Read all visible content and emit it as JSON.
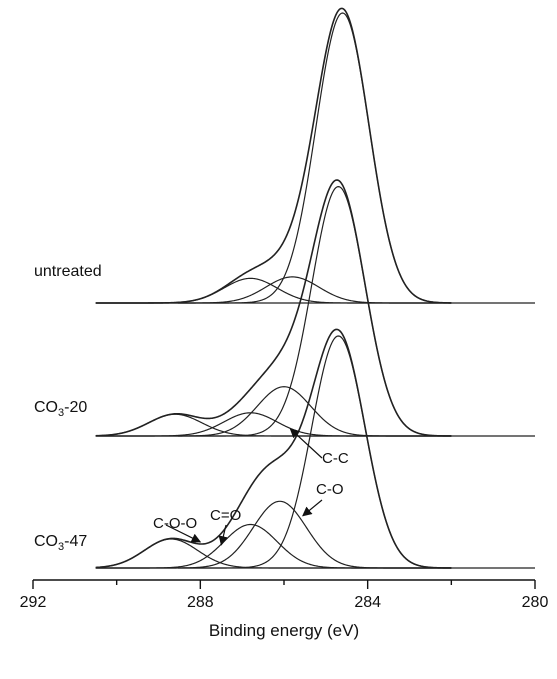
{
  "chart_data": {
    "type": "line",
    "title": "",
    "xlabel": "Binding energy (eV)",
    "ylabel": "",
    "xlim": [
      292,
      280
    ],
    "x_reversed": true,
    "xticks": [
      292,
      290,
      288,
      286,
      284,
      282,
      280
    ],
    "xtick_labels": [
      "292",
      "",
      "288",
      "",
      "284",
      "",
      "280"
    ],
    "grid": false,
    "legend": "none",
    "spectra": [
      {
        "label": "untreated",
        "baseline": 0,
        "components": [
          {
            "center": 284.6,
            "height": 1.0,
            "fwhm": 1.5
          },
          {
            "center": 286.8,
            "height": 0.085,
            "fwhm": 1.5
          },
          {
            "center": 285.8,
            "height": 0.09,
            "fwhm": 1.5
          }
        ]
      },
      {
        "label": "CO3-20",
        "baseline": -1,
        "components": [
          {
            "center": 284.7,
            "height": 0.86,
            "fwhm": 1.5
          },
          {
            "center": 286.0,
            "height": 0.17,
            "fwhm": 1.5
          },
          {
            "center": 286.8,
            "height": 0.08,
            "fwhm": 1.5
          },
          {
            "center": 288.6,
            "height": 0.075,
            "fwhm": 1.5
          }
        ]
      },
      {
        "label": "CO3-47",
        "baseline": -2,
        "components": [
          {
            "center": 284.7,
            "height": 0.8,
            "fwhm": 1.5
          },
          {
            "center": 286.1,
            "height": 0.23,
            "fwhm": 1.5
          },
          {
            "center": 286.8,
            "height": 0.15,
            "fwhm": 1.5
          },
          {
            "center": 288.7,
            "height": 0.1,
            "fwhm": 1.5
          }
        ]
      }
    ],
    "spectrum_labels": [
      {
        "base": "untreated",
        "sub": "",
        "rest": ""
      },
      {
        "base": "CO",
        "sub": "3",
        "rest": "-20"
      },
      {
        "base": "CO",
        "sub": "3",
        "rest": "-47"
      }
    ],
    "annotations": [
      {
        "text": "C-C",
        "x": 285.4,
        "spectrum": 2,
        "level": 0.42,
        "arrow_to": [
          285.85,
          0.48
        ]
      },
      {
        "text": "C-O",
        "x": 285.1,
        "spectrum": 2,
        "level": 0.32,
        "arrow_to": [
          285.55,
          0.18
        ]
      },
      {
        "text": "C=O",
        "x": 286.6,
        "spectrum": 2,
        "level": 0.25,
        "arrow_to": [
          287.5,
          0.08
        ]
      },
      {
        "text": "C-O-O",
        "x": 288.6,
        "spectrum": 2,
        "level": 0.25,
        "arrow_to": [
          288.0,
          0.09
        ]
      }
    ]
  }
}
